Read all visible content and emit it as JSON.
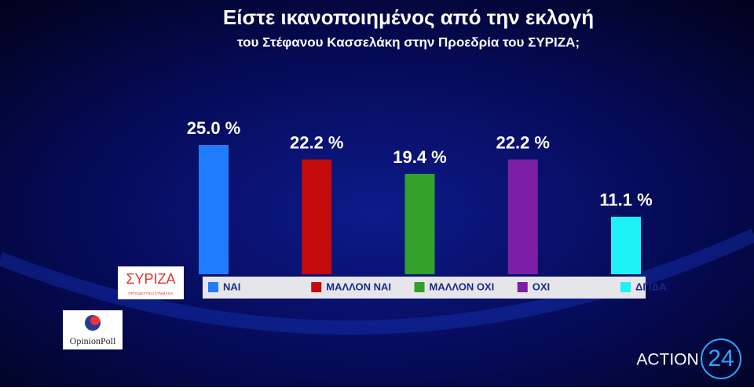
{
  "chart_data": {
    "type": "bar",
    "title": "Είστε ικανοποιημένος από την εκλογή",
    "subtitle": "του Στέφανου Κασσελάκη στην Προεδρία  του ΣΥΡΙΖΑ;",
    "categories": [
      "ΝΑΙ",
      "ΜΑΛΛΟΝ ΝΑΙ",
      "ΜΑΛΛΟΝ ΟΧΙ",
      "ΟΧΙ",
      "ΔΓ/ΔΑ"
    ],
    "values": [
      25.0,
      22.2,
      19.4,
      22.2,
      11.1
    ],
    "value_labels": [
      "25.0 %",
      "22.2 %",
      "19.4 %",
      "22.2 %",
      "11.1 %"
    ],
    "colors": [
      "#1f7cff",
      "#c40a0a",
      "#33a02c",
      "#7d1fa6",
      "#1ff2f7"
    ],
    "legend": "bottom"
  },
  "logos": {
    "party": "ΣΥΡΙΖΑ",
    "party_tagline": "ΠΡΟΟΔΕΥΤΙΚΗ ΣΥΜΜΑΧΙΑ",
    "pollster": "OpinionPoll",
    "channel": "ACTION",
    "channel_number": "24"
  }
}
